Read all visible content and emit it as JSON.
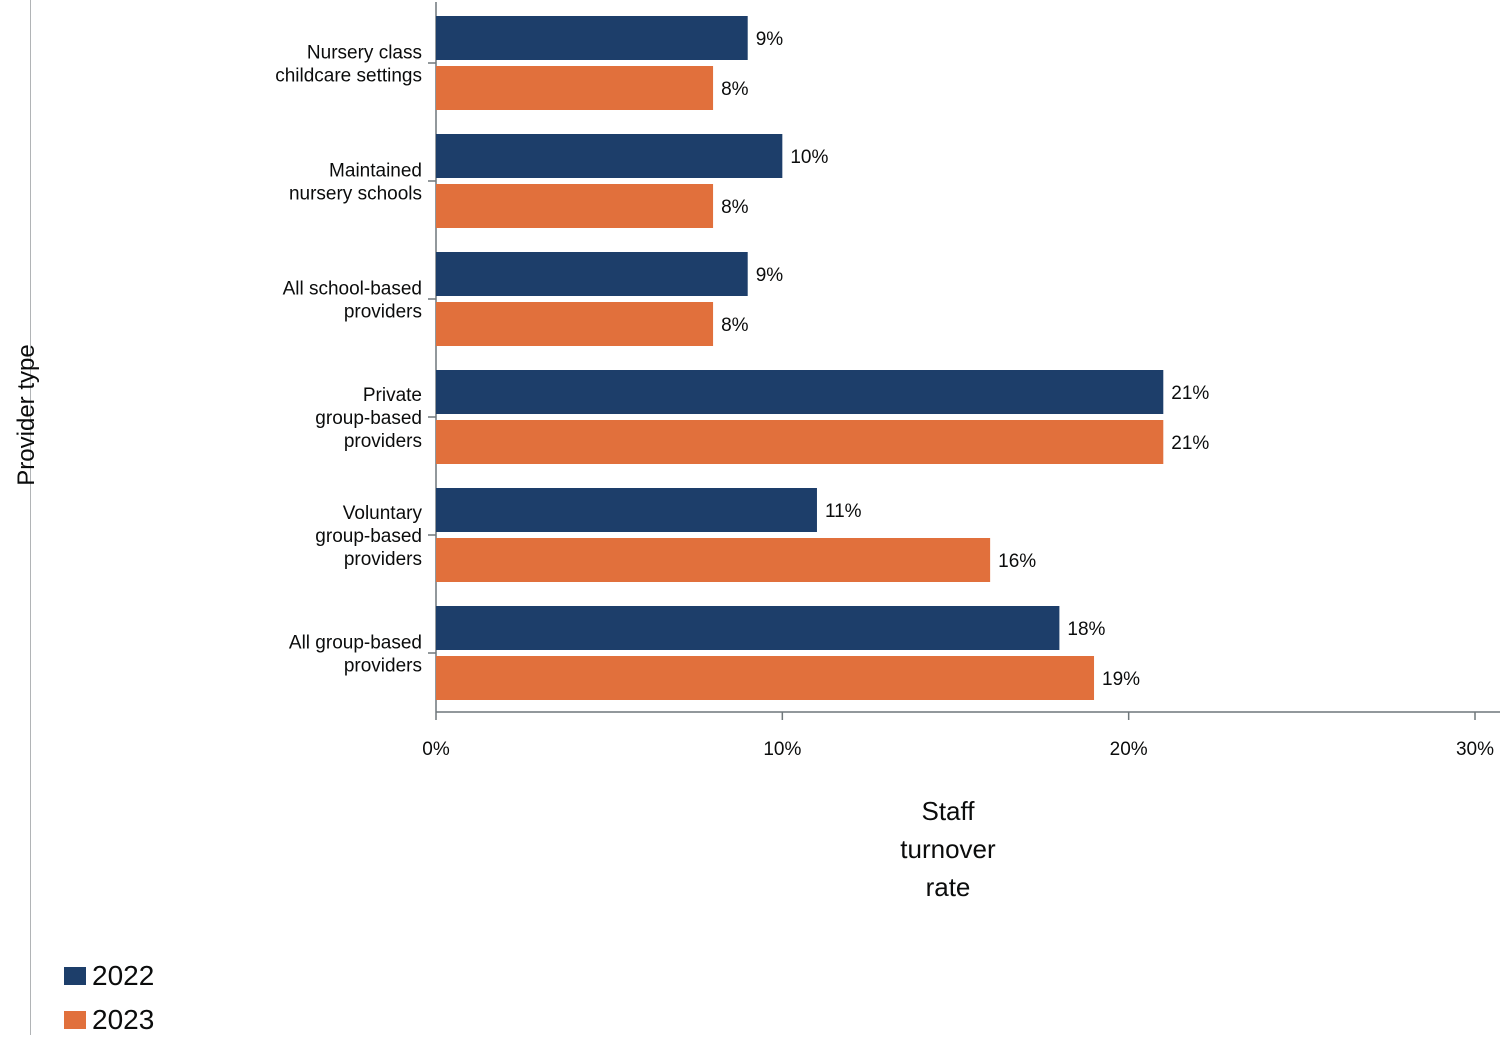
{
  "chart_data": {
    "type": "bar",
    "orientation": "horizontal",
    "title": "",
    "xlabel": "Staff turnover rate",
    "xlabel_lines": [
      "Staff",
      "turnover",
      "rate"
    ],
    "ylabel": "Provider type",
    "xlim": [
      0,
      30
    ],
    "x_ticks": [
      0,
      10,
      20,
      30
    ],
    "x_tick_labels": [
      "0%",
      "10%",
      "20%",
      "30%"
    ],
    "value_suffix": "%",
    "grid": false,
    "legend_position": "bottom-left",
    "categories": [
      "Nursery class childcare settings",
      "Maintained nursery schools",
      "All school-based providers",
      "Private group-based providers",
      "Voluntary group-based providers",
      "All group-based providers"
    ],
    "category_label_lines": [
      [
        "Nursery class",
        "childcare settings"
      ],
      [
        "Maintained",
        "nursery schools"
      ],
      [
        "All school-based",
        "providers"
      ],
      [
        "Private",
        "group-based",
        "providers"
      ],
      [
        "Voluntary",
        "group-based",
        "providers"
      ],
      [
        "All group-based",
        "providers"
      ]
    ],
    "series": [
      {
        "name": "2022",
        "color": "#1d3e6a",
        "values": [
          9,
          10,
          9,
          21,
          11,
          18
        ]
      },
      {
        "name": "2023",
        "color": "#e1703c",
        "values": [
          8,
          8,
          8,
          21,
          16,
          19
        ]
      }
    ]
  }
}
